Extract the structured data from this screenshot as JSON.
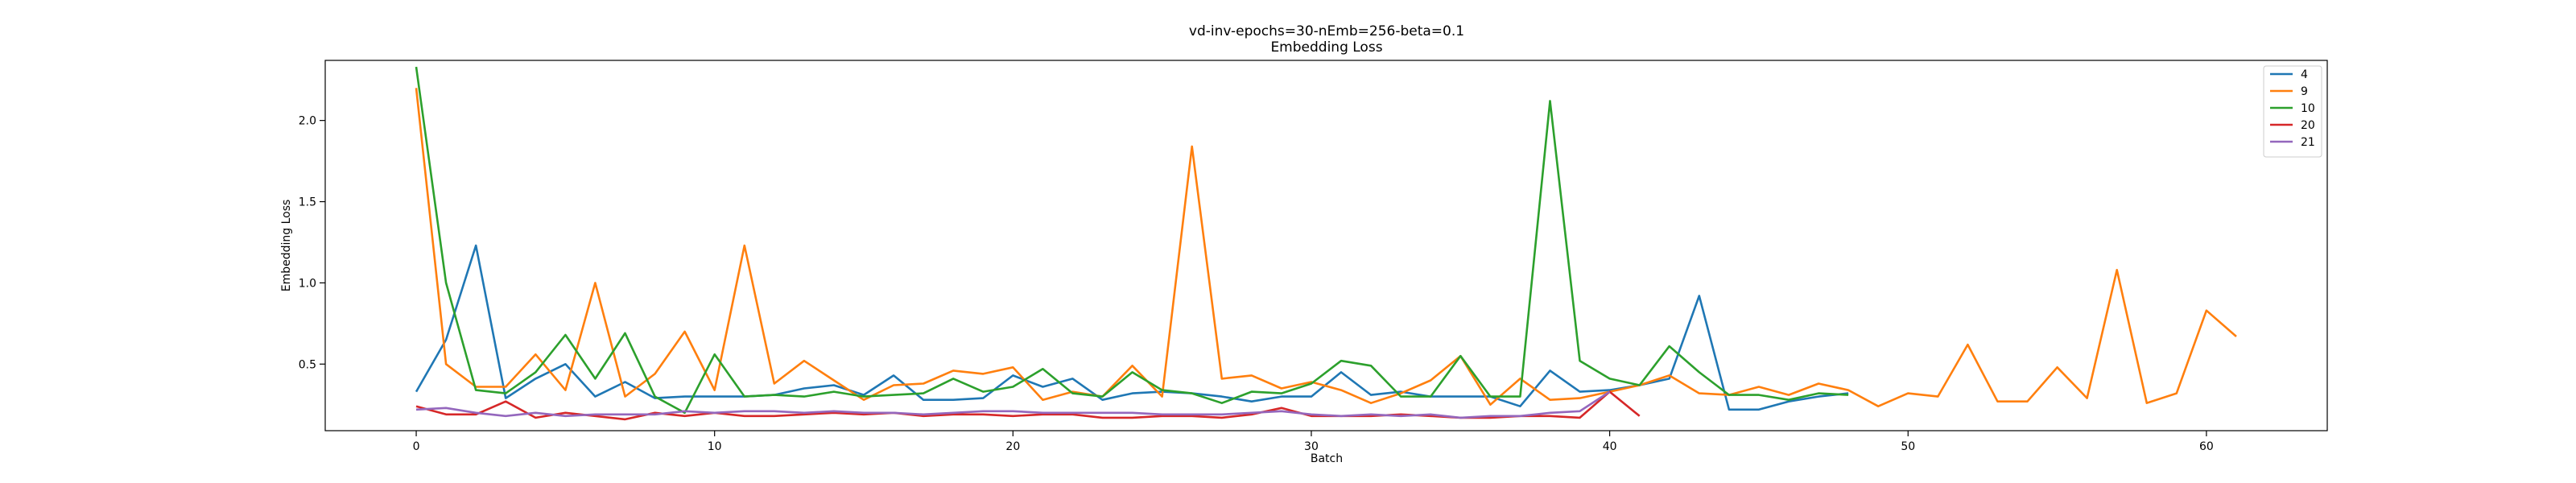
{
  "chart_data": {
    "type": "line",
    "title": "vd-inv-epochs=30-nEmb=256-beta=0.1",
    "subtitle": "Embedding Loss",
    "xlabel": "Batch",
    "ylabel": "Embedding Loss",
    "xlim": [
      -3.05,
      64.05
    ],
    "ylim": [
      0.09,
      2.37
    ],
    "xticks": [
      0,
      10,
      20,
      30,
      40,
      50,
      60
    ],
    "yticks": [
      0.5,
      1.0,
      1.5,
      2.0
    ],
    "ytick_labels": [
      "0.5",
      "1.0",
      "1.5",
      "2.0"
    ],
    "grid": false,
    "legend_position": "top-right",
    "series": [
      {
        "name": "4",
        "color": "#1f77b4",
        "values": [
          0.33,
          0.65,
          1.23,
          0.29,
          0.41,
          0.5,
          0.3,
          0.39,
          0.29,
          0.3,
          0.3,
          0.3,
          0.31,
          0.35,
          0.37,
          0.31,
          0.43,
          0.28,
          0.28,
          0.29,
          0.43,
          0.36,
          0.41,
          0.28,
          0.32,
          0.33,
          0.32,
          0.3,
          0.27,
          0.3,
          0.3,
          0.45,
          0.31,
          0.33,
          0.3,
          0.3,
          0.3,
          0.24,
          0.46,
          0.33,
          0.34,
          0.37,
          0.41,
          0.92,
          0.22,
          0.22,
          0.27,
          0.3,
          0.32
        ]
      },
      {
        "name": "9",
        "color": "#ff7f0e",
        "values": [
          2.2,
          0.5,
          0.36,
          0.36,
          0.56,
          0.34,
          1.0,
          0.3,
          0.44,
          0.7,
          0.34,
          1.23,
          0.38,
          0.52,
          0.4,
          0.28,
          0.37,
          0.38,
          0.46,
          0.44,
          0.48,
          0.28,
          0.33,
          0.3,
          0.49,
          0.3,
          1.84,
          0.41,
          0.43,
          0.35,
          0.39,
          0.34,
          0.26,
          0.32,
          0.4,
          0.55,
          0.25,
          0.41,
          0.28,
          0.29,
          0.33,
          0.37,
          0.43,
          0.32,
          0.31,
          0.36,
          0.31,
          0.38,
          0.34,
          0.24,
          0.32,
          0.3,
          0.62,
          0.27,
          0.27,
          0.48,
          0.29,
          1.08,
          0.26,
          0.32,
          0.83,
          0.67
        ]
      },
      {
        "name": "10",
        "color": "#2ca02c",
        "values": [
          2.33,
          1.0,
          0.34,
          0.32,
          0.45,
          0.68,
          0.41,
          0.69,
          0.3,
          0.2,
          0.56,
          0.3,
          0.31,
          0.3,
          0.33,
          0.3,
          0.31,
          0.32,
          0.41,
          0.33,
          0.36,
          0.47,
          0.32,
          0.3,
          0.45,
          0.34,
          0.32,
          0.26,
          0.33,
          0.32,
          0.38,
          0.52,
          0.49,
          0.3,
          0.3,
          0.55,
          0.3,
          0.3,
          2.12,
          0.52,
          0.41,
          0.37,
          0.61,
          0.45,
          0.31,
          0.31,
          0.28,
          0.32,
          0.31
        ]
      },
      {
        "name": "20",
        "color": "#d62728",
        "values": [
          0.24,
          0.19,
          0.19,
          0.27,
          0.17,
          0.2,
          0.18,
          0.16,
          0.2,
          0.18,
          0.2,
          0.18,
          0.18,
          0.19,
          0.2,
          0.19,
          0.2,
          0.18,
          0.19,
          0.19,
          0.18,
          0.19,
          0.19,
          0.17,
          0.17,
          0.18,
          0.18,
          0.17,
          0.19,
          0.23,
          0.18,
          0.18,
          0.18,
          0.19,
          0.18,
          0.17,
          0.17,
          0.18,
          0.18,
          0.17,
          0.33,
          0.18
        ]
      },
      {
        "name": "21",
        "color": "#9467bd",
        "values": [
          0.22,
          0.23,
          0.2,
          0.18,
          0.2,
          0.18,
          0.19,
          0.19,
          0.19,
          0.21,
          0.2,
          0.21,
          0.21,
          0.2,
          0.21,
          0.2,
          0.2,
          0.19,
          0.2,
          0.21,
          0.21,
          0.2,
          0.2,
          0.2,
          0.2,
          0.19,
          0.19,
          0.19,
          0.2,
          0.21,
          0.19,
          0.18,
          0.19,
          0.18,
          0.19,
          0.17,
          0.18,
          0.18,
          0.2,
          0.21,
          0.33
        ]
      }
    ]
  }
}
